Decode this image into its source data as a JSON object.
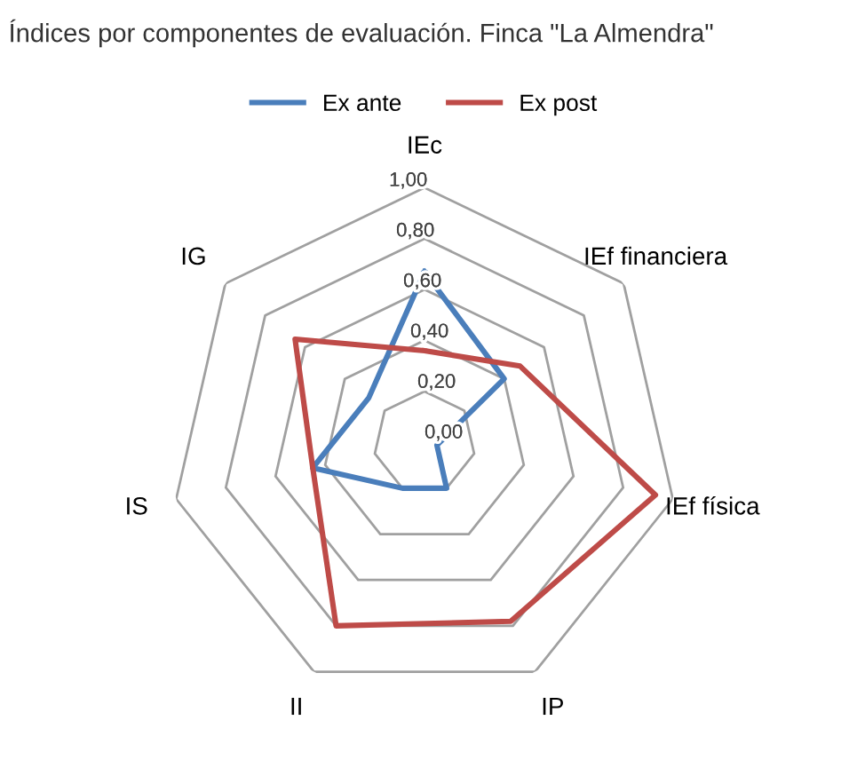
{
  "chart_data": {
    "type": "radar",
    "title": "Índices por componentes de evaluación. Finca \"La Almendra\"",
    "categories": [
      "IEc",
      "IEf financiera",
      "IEf física",
      "IP",
      "II",
      "IS",
      "IG"
    ],
    "series": [
      {
        "name": "Ex ante",
        "color": "#4a7ebb",
        "values": [
          0.67,
          0.4,
          0.05,
          0.2,
          0.2,
          0.45,
          0.28
        ]
      },
      {
        "name": "Ex post",
        "color": "#be4b48",
        "values": [
          0.36,
          0.48,
          0.93,
          0.78,
          0.8,
          0.45,
          0.65
        ]
      }
    ],
    "ylim": [
      0,
      1
    ],
    "yticks": [
      {
        "value": 0,
        "label": "0,00"
      },
      {
        "value": 0.2,
        "label": "0,20"
      },
      {
        "value": 0.4,
        "label": "0,40"
      },
      {
        "value": 0.6,
        "label": "0,60"
      },
      {
        "value": 0.8,
        "label": "0,80"
      },
      {
        "value": 1,
        "label": "1,00"
      }
    ],
    "legend": "top"
  }
}
